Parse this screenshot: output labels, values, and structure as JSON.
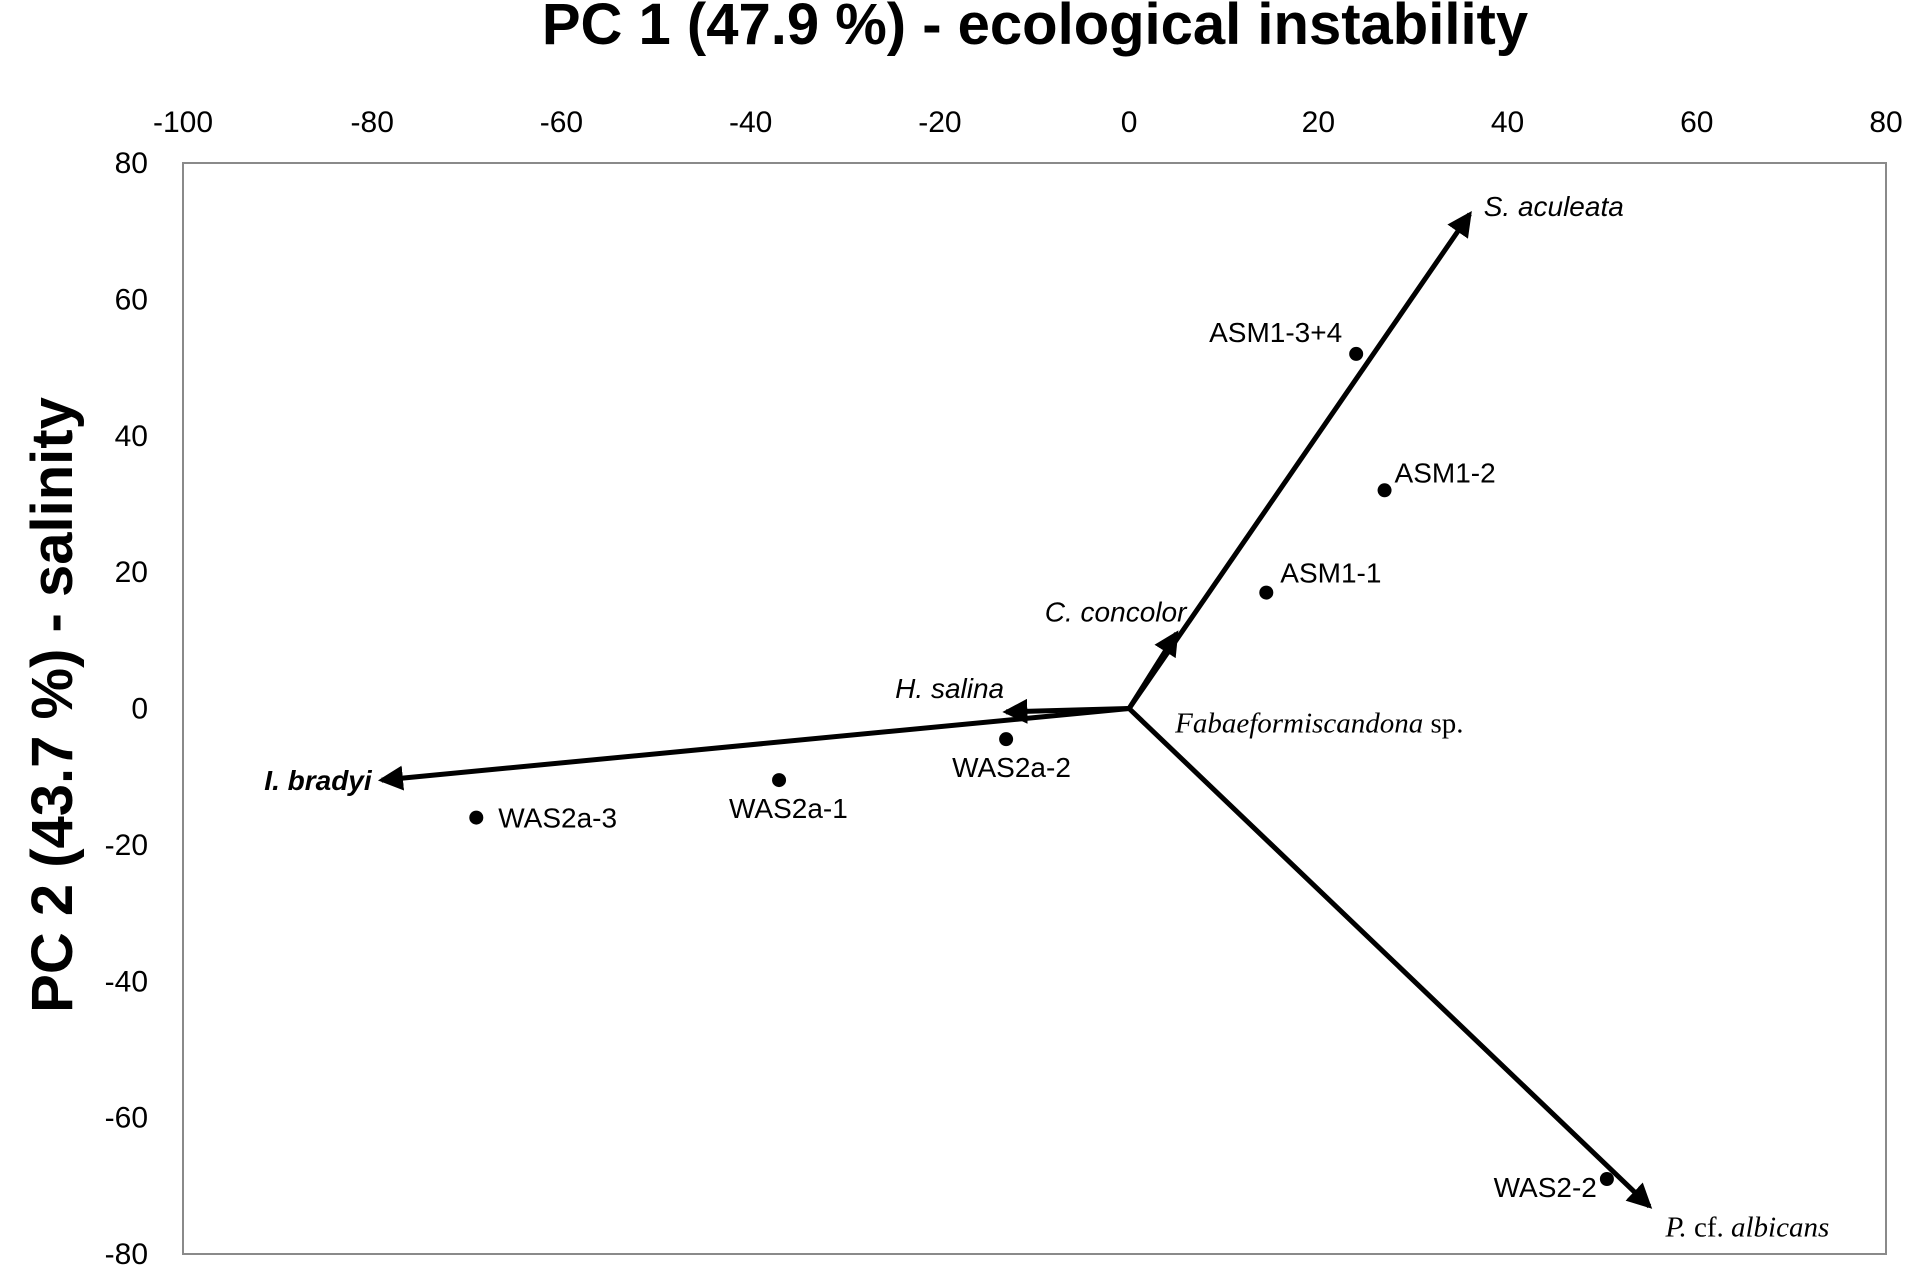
{
  "chart_data": {
    "type": "scatter",
    "subtype": "pca-biplot",
    "title": "PC 1 (47.9 %) - ecological instability",
    "xlabel": "PC 1 (47.9 %) - ecological instability",
    "ylabel": "PC 2 (43.7 %) - salinity",
    "xlim": [
      -100,
      80
    ],
    "ylim": [
      -80,
      80
    ],
    "x_ticks": [
      -100,
      -80,
      -60,
      -40,
      -20,
      0,
      20,
      40,
      60,
      80
    ],
    "y_ticks": [
      80,
      60,
      40,
      20,
      0,
      -20,
      -40,
      -60,
      -80
    ],
    "x_axis_position": "top",
    "grid": false,
    "legend": "none",
    "samples": [
      {
        "label": "ASM1-3+4",
        "x": 24,
        "y": 52
      },
      {
        "label": "ASM1-2",
        "x": 27,
        "y": 32
      },
      {
        "label": "ASM1-1",
        "x": 14.5,
        "y": 17
      },
      {
        "label": "WAS2a-2",
        "x": -13,
        "y": -4.5
      },
      {
        "label": "WAS2a-1",
        "x": -37,
        "y": -10.5
      },
      {
        "label": "WAS2a-3",
        "x": -69,
        "y": -16
      },
      {
        "label": "WAS2-2",
        "x": 50.5,
        "y": -69
      }
    ],
    "species_vectors": [
      {
        "name": "S. aculeata",
        "x": 36,
        "y": 72.5
      },
      {
        "name": "P. cf. albicans",
        "x": 55,
        "y": -73
      },
      {
        "name": "I. bradyi",
        "x": -79,
        "y": -10.5
      },
      {
        "name": "H. salina",
        "x": -13,
        "y": -0.5
      },
      {
        "name": "C. concolor",
        "x": 5,
        "y": 11
      },
      {
        "name": "Fabaeformiscandona sp.",
        "x": 0,
        "y": 0
      }
    ]
  }
}
